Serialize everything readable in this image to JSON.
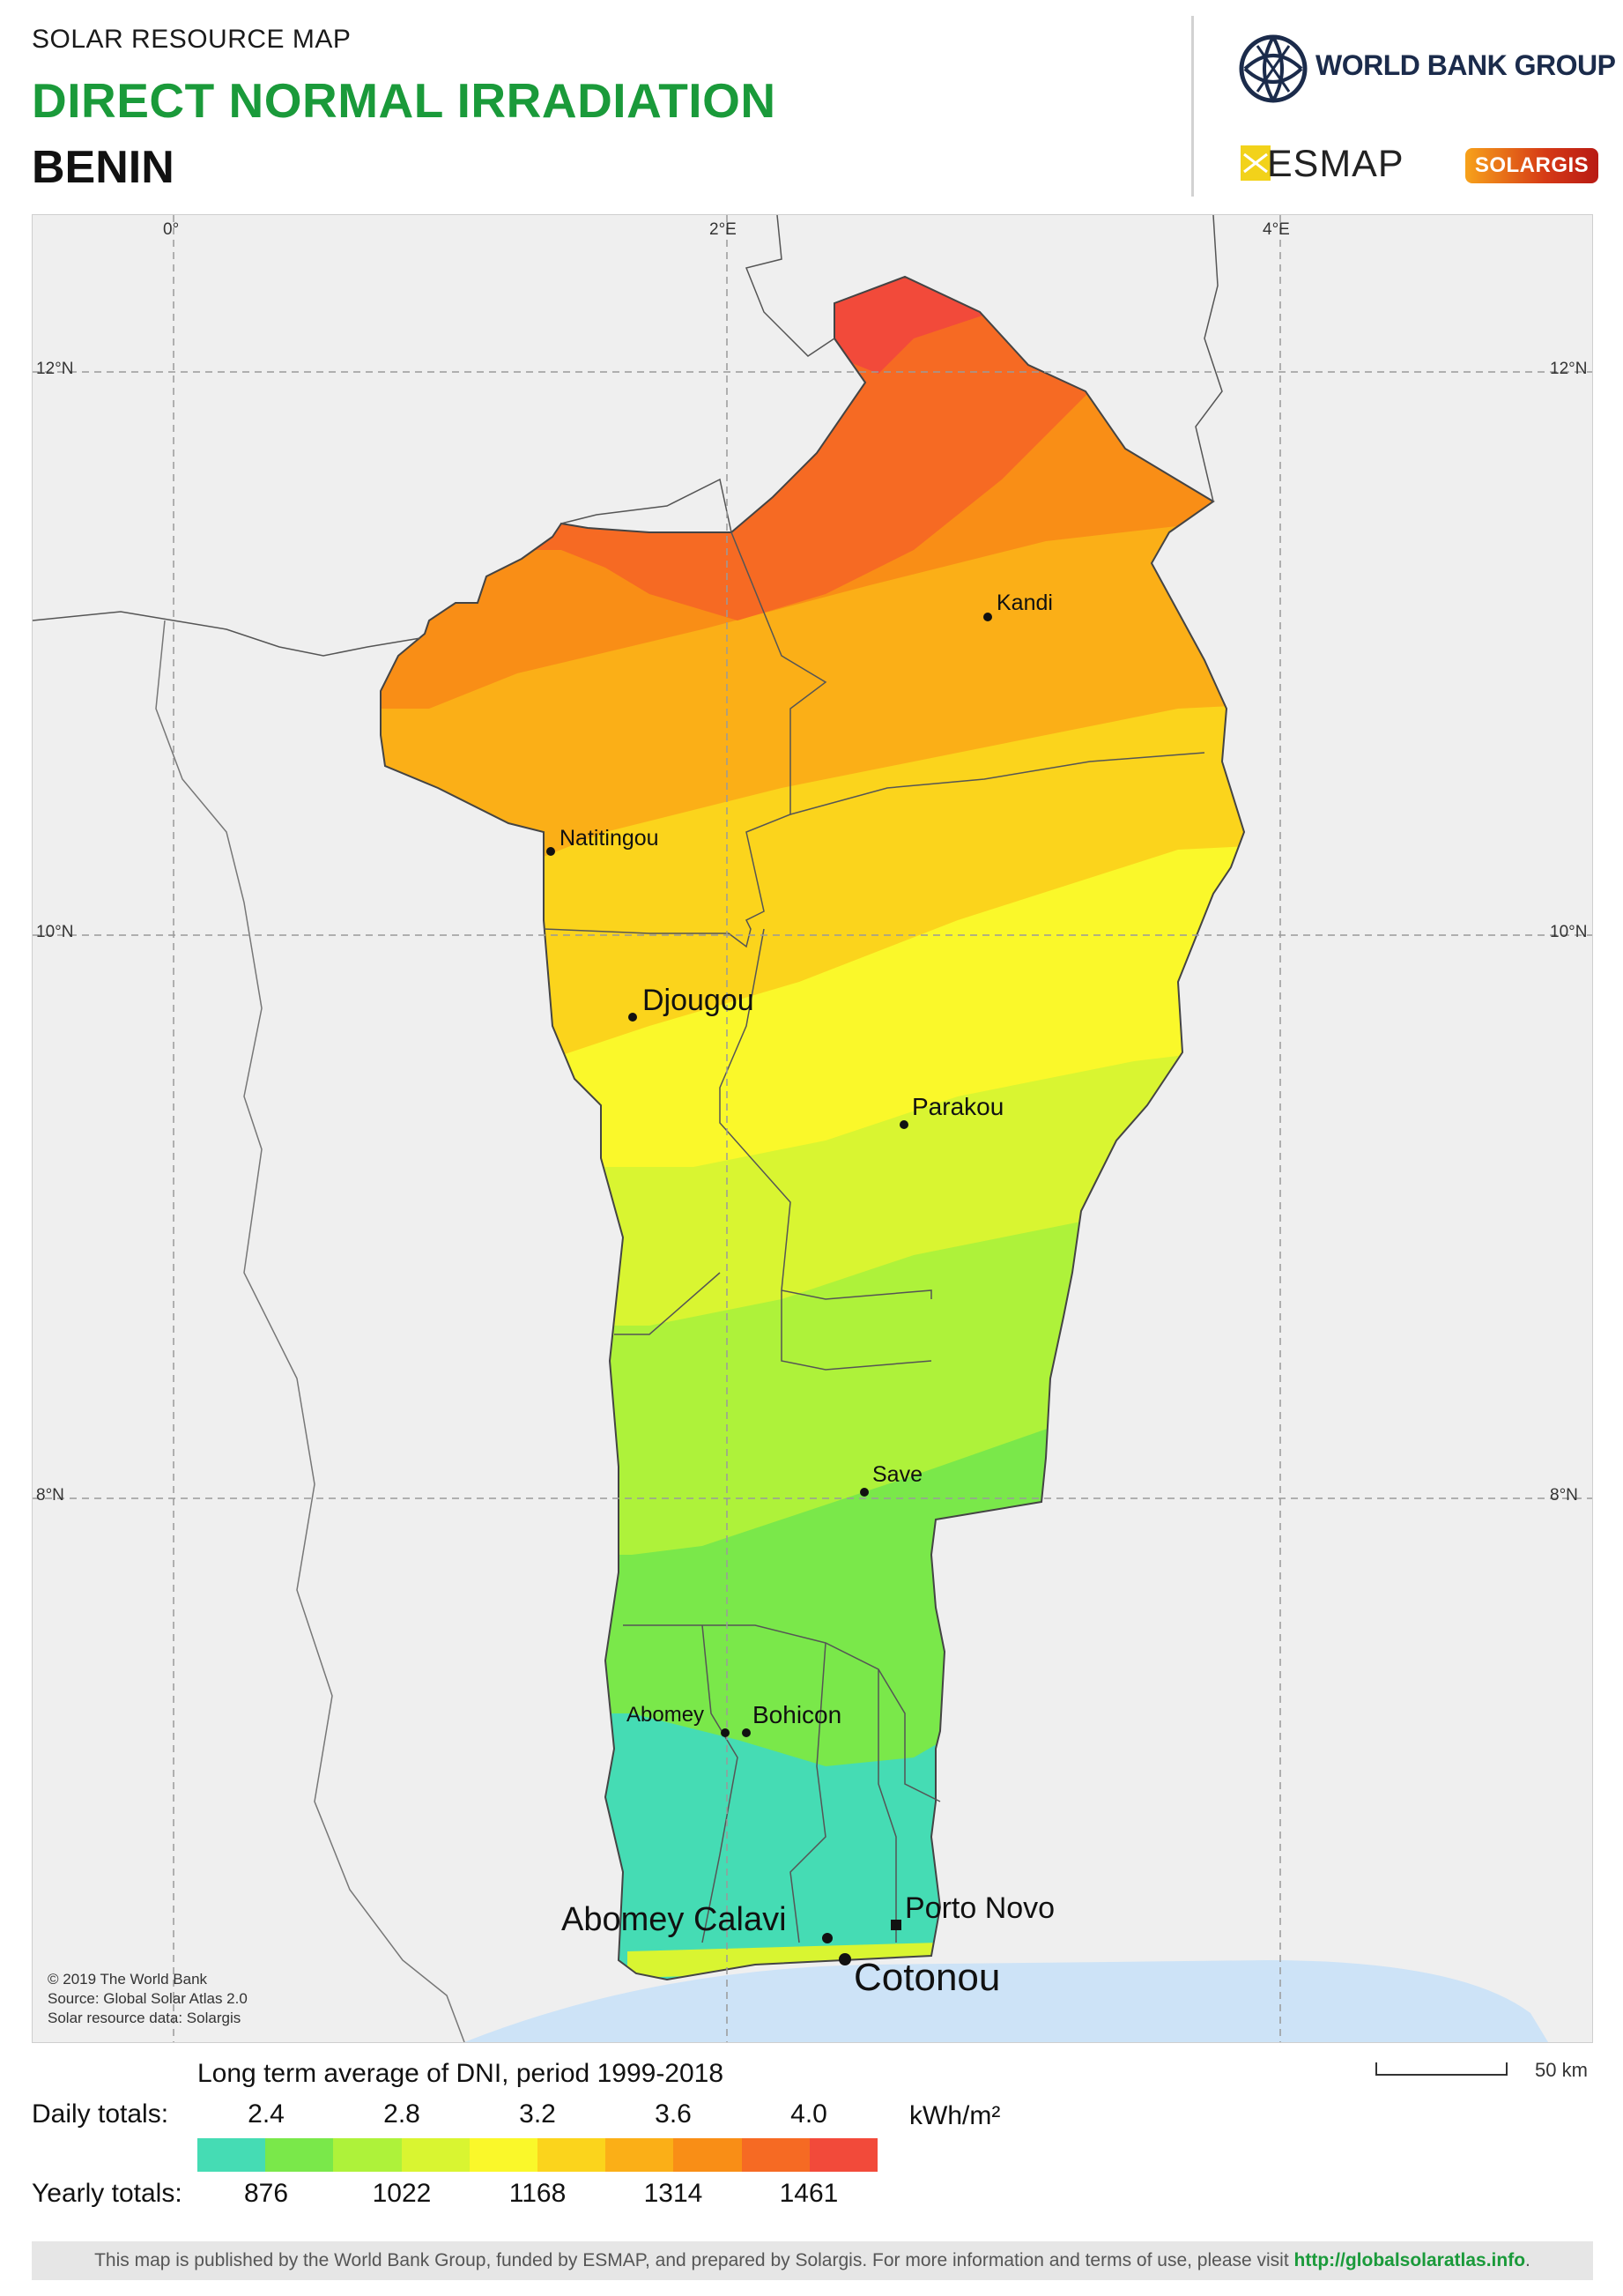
{
  "header": {
    "supertitle": "SOLAR RESOURCE MAP",
    "title": "DIRECT NORMAL IRRADIATION",
    "country": "BENIN"
  },
  "logos": {
    "world_bank": "WORLD BANK GROUP",
    "esmap": "ESMAP",
    "solargis": "SOLARGIS"
  },
  "map": {
    "graticule": {
      "longitudes": [
        "0°",
        "2°E",
        "4°E"
      ],
      "latitudes": [
        "12°N",
        "10°N",
        "8°N"
      ]
    },
    "cities": [
      "Kandi",
      "Natitingou",
      "Djougou",
      "Parakou",
      "Save",
      "Abomey",
      "Bohicon",
      "Abomey Calavi",
      "Porto Novo",
      "Cotonou"
    ],
    "credits": [
      "© 2019 The World Bank",
      "Source: Global Solar Atlas 2.0",
      "Solar resource data: Solargis"
    ],
    "scale_bar": "50 km"
  },
  "legend": {
    "title": "Long term average of DNI, period 1999-2018",
    "daily_label": "Daily totals:",
    "yearly_label": "Yearly totals:",
    "daily_ticks": [
      "2.4",
      "2.8",
      "3.2",
      "3.6",
      "4.0"
    ],
    "yearly_ticks": [
      "876",
      "1022",
      "1168",
      "1314",
      "1461"
    ],
    "unit": "kWh/m²",
    "colors": [
      "#45dcb4",
      "#7ae84a",
      "#aef23a",
      "#d9f531",
      "#faf82a",
      "#fbd41c",
      "#fbaf17",
      "#f98e16",
      "#f66a23",
      "#f24a3a"
    ]
  },
  "footer": {
    "text": "This map is published by the World Bank Group, funded by ESMAP, and prepared by Solargis. For more information and terms of use, please visit",
    "link": "http://globalsolaratlas.info",
    "end": "."
  }
}
